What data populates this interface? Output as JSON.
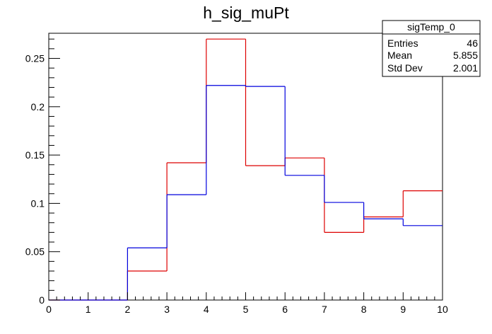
{
  "chart_data": {
    "type": "bar",
    "title": "h_sig_muPt",
    "xlabel": "",
    "ylabel": "",
    "xlim": [
      0,
      10
    ],
    "ylim": [
      0,
      0.276
    ],
    "grid": false,
    "bin_edges": [
      0,
      1,
      2,
      3,
      4,
      5,
      6,
      7,
      8,
      9,
      10
    ],
    "x_tick_labels": [
      "0",
      "1",
      "2",
      "3",
      "4",
      "5",
      "6",
      "7",
      "8",
      "9",
      "10"
    ],
    "y_tick_values": [
      0,
      0.05,
      0.1,
      0.15,
      0.2,
      0.25
    ],
    "y_tick_labels": [
      "0",
      "0.05",
      "0.1",
      "0.15",
      "0.2",
      "0.25"
    ],
    "series": [
      {
        "color": "#dd0000",
        "values": [
          0,
          0,
          0.03,
          0.142,
          0.27,
          0.139,
          0.147,
          0.07,
          0.086,
          0.113
        ]
      },
      {
        "color": "#0000dd",
        "values": [
          0,
          0,
          0.054,
          0.109,
          0.222,
          0.221,
          0.129,
          0.101,
          0.084,
          0.077
        ]
      }
    ],
    "stats_box": {
      "title": "sigTemp_0",
      "rows": [
        {
          "label": "Entries",
          "value": "46"
        },
        {
          "label": "Mean",
          "value": "5.855"
        },
        {
          "label": "Std Dev",
          "value": "2.001"
        }
      ]
    }
  }
}
